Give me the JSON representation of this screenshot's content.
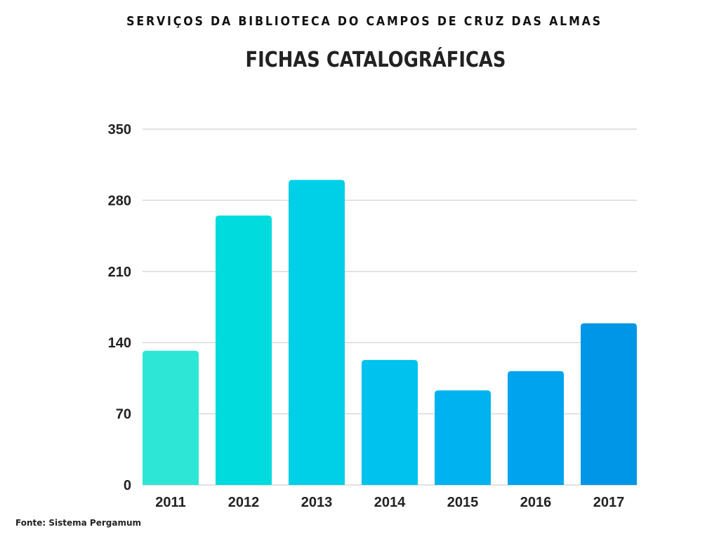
{
  "header": {
    "supertitle": "SERVIÇOS DA BIBLIOTECA DO CAMPOS DE CRUZ DAS ALMAS",
    "title": "FICHAS CATALOGRÁFICAS"
  },
  "footer": {
    "source": "Fonte: Sistema Pergamum"
  },
  "chart_data": {
    "type": "bar",
    "title": "FICHAS CATALOGRÁFICAS",
    "xlabel": "",
    "ylabel": "",
    "categories": [
      "2011",
      "2012",
      "2013",
      "2014",
      "2015",
      "2016",
      "2017"
    ],
    "values": [
      132,
      265,
      300,
      123,
      93,
      112,
      159
    ],
    "colors": [
      "#2ee6d6",
      "#00dbdd",
      "#00cfe8",
      "#00c2ee",
      "#00b3f0",
      "#00a3ee",
      "#0096e8"
    ],
    "ylim": [
      0,
      350
    ],
    "yticks": [
      0,
      70,
      140,
      210,
      280,
      350
    ],
    "ytick_labels": [
      "0",
      "70",
      "140",
      "210",
      "280",
      "350"
    ],
    "grid": true,
    "grid_color": "#d9d9d9",
    "legend": "none"
  }
}
